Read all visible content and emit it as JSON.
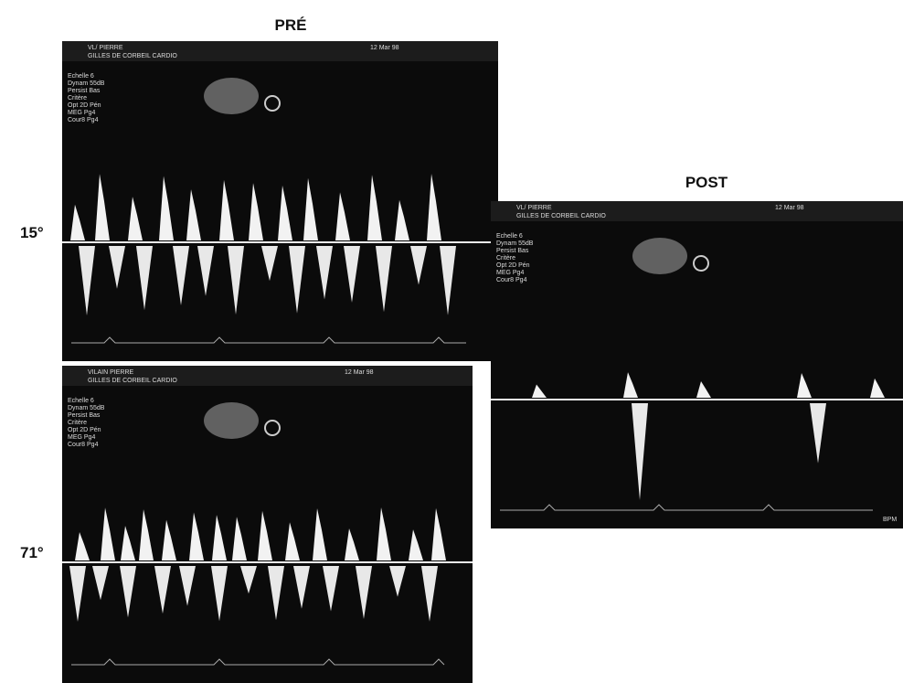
{
  "figure": {
    "labels": {
      "pre": "PRÉ",
      "post": "POST"
    },
    "panels": [
      {
        "angle": "15°",
        "patient": "VL/ PIERRE",
        "site": "GILLES DE CORBEIL CARDIO",
        "date": "12 Mar 98",
        "settings": [
          "Echelle 6",
          "Dynam 55dB",
          "Persist Bas",
          "Critère",
          "Opt 2D Pén",
          "MEG Pg4",
          "Cour8 Pg4"
        ]
      },
      {
        "angle": "71°",
        "patient": "VILAIN PIERRE",
        "site": "GILLES DE CORBEIL CARDIO",
        "date": "12 Mar 98",
        "settings": [
          "Echelle 6",
          "Dynam 55dB",
          "Persist Bas",
          "Critère",
          "Opt 2D Pén",
          "MEG Pg4",
          "Cour8 Pg4"
        ]
      },
      {
        "patient": "VL/ PIERRE",
        "site": "GILLES DE CORBEIL CARDIO",
        "date": "12 Mar 98",
        "settings": [
          "Echelle 6",
          "Dynam 55dB",
          "Persist Bas",
          "Critère",
          "Opt 2D Pén",
          "MEG Pg4",
          "Cour8 Pg4"
        ],
        "unit": "BPM"
      }
    ]
  }
}
